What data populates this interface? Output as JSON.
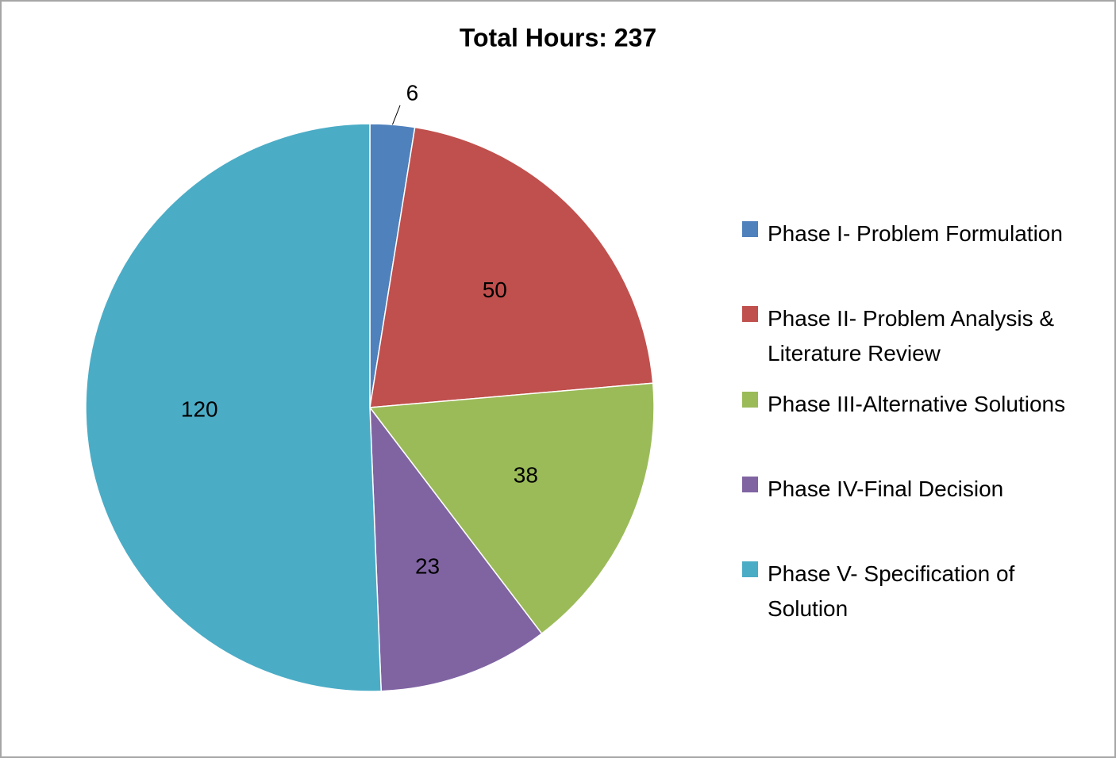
{
  "chart_data": {
    "type": "pie",
    "title": "Total Hours: 237",
    "categories": [
      "Phase I- Problem Formulation",
      "Phase II- Problem Analysis & Literature Review",
      "Phase III-Alternative Solutions",
      "Phase IV-Final Decision",
      "Phase V- Specification of Solution"
    ],
    "values": [
      6,
      50,
      38,
      23,
      120
    ],
    "colors": [
      "#4f81bd",
      "#c0504d",
      "#9bbb59",
      "#8064a2",
      "#4bacc6"
    ],
    "legend": "right"
  }
}
